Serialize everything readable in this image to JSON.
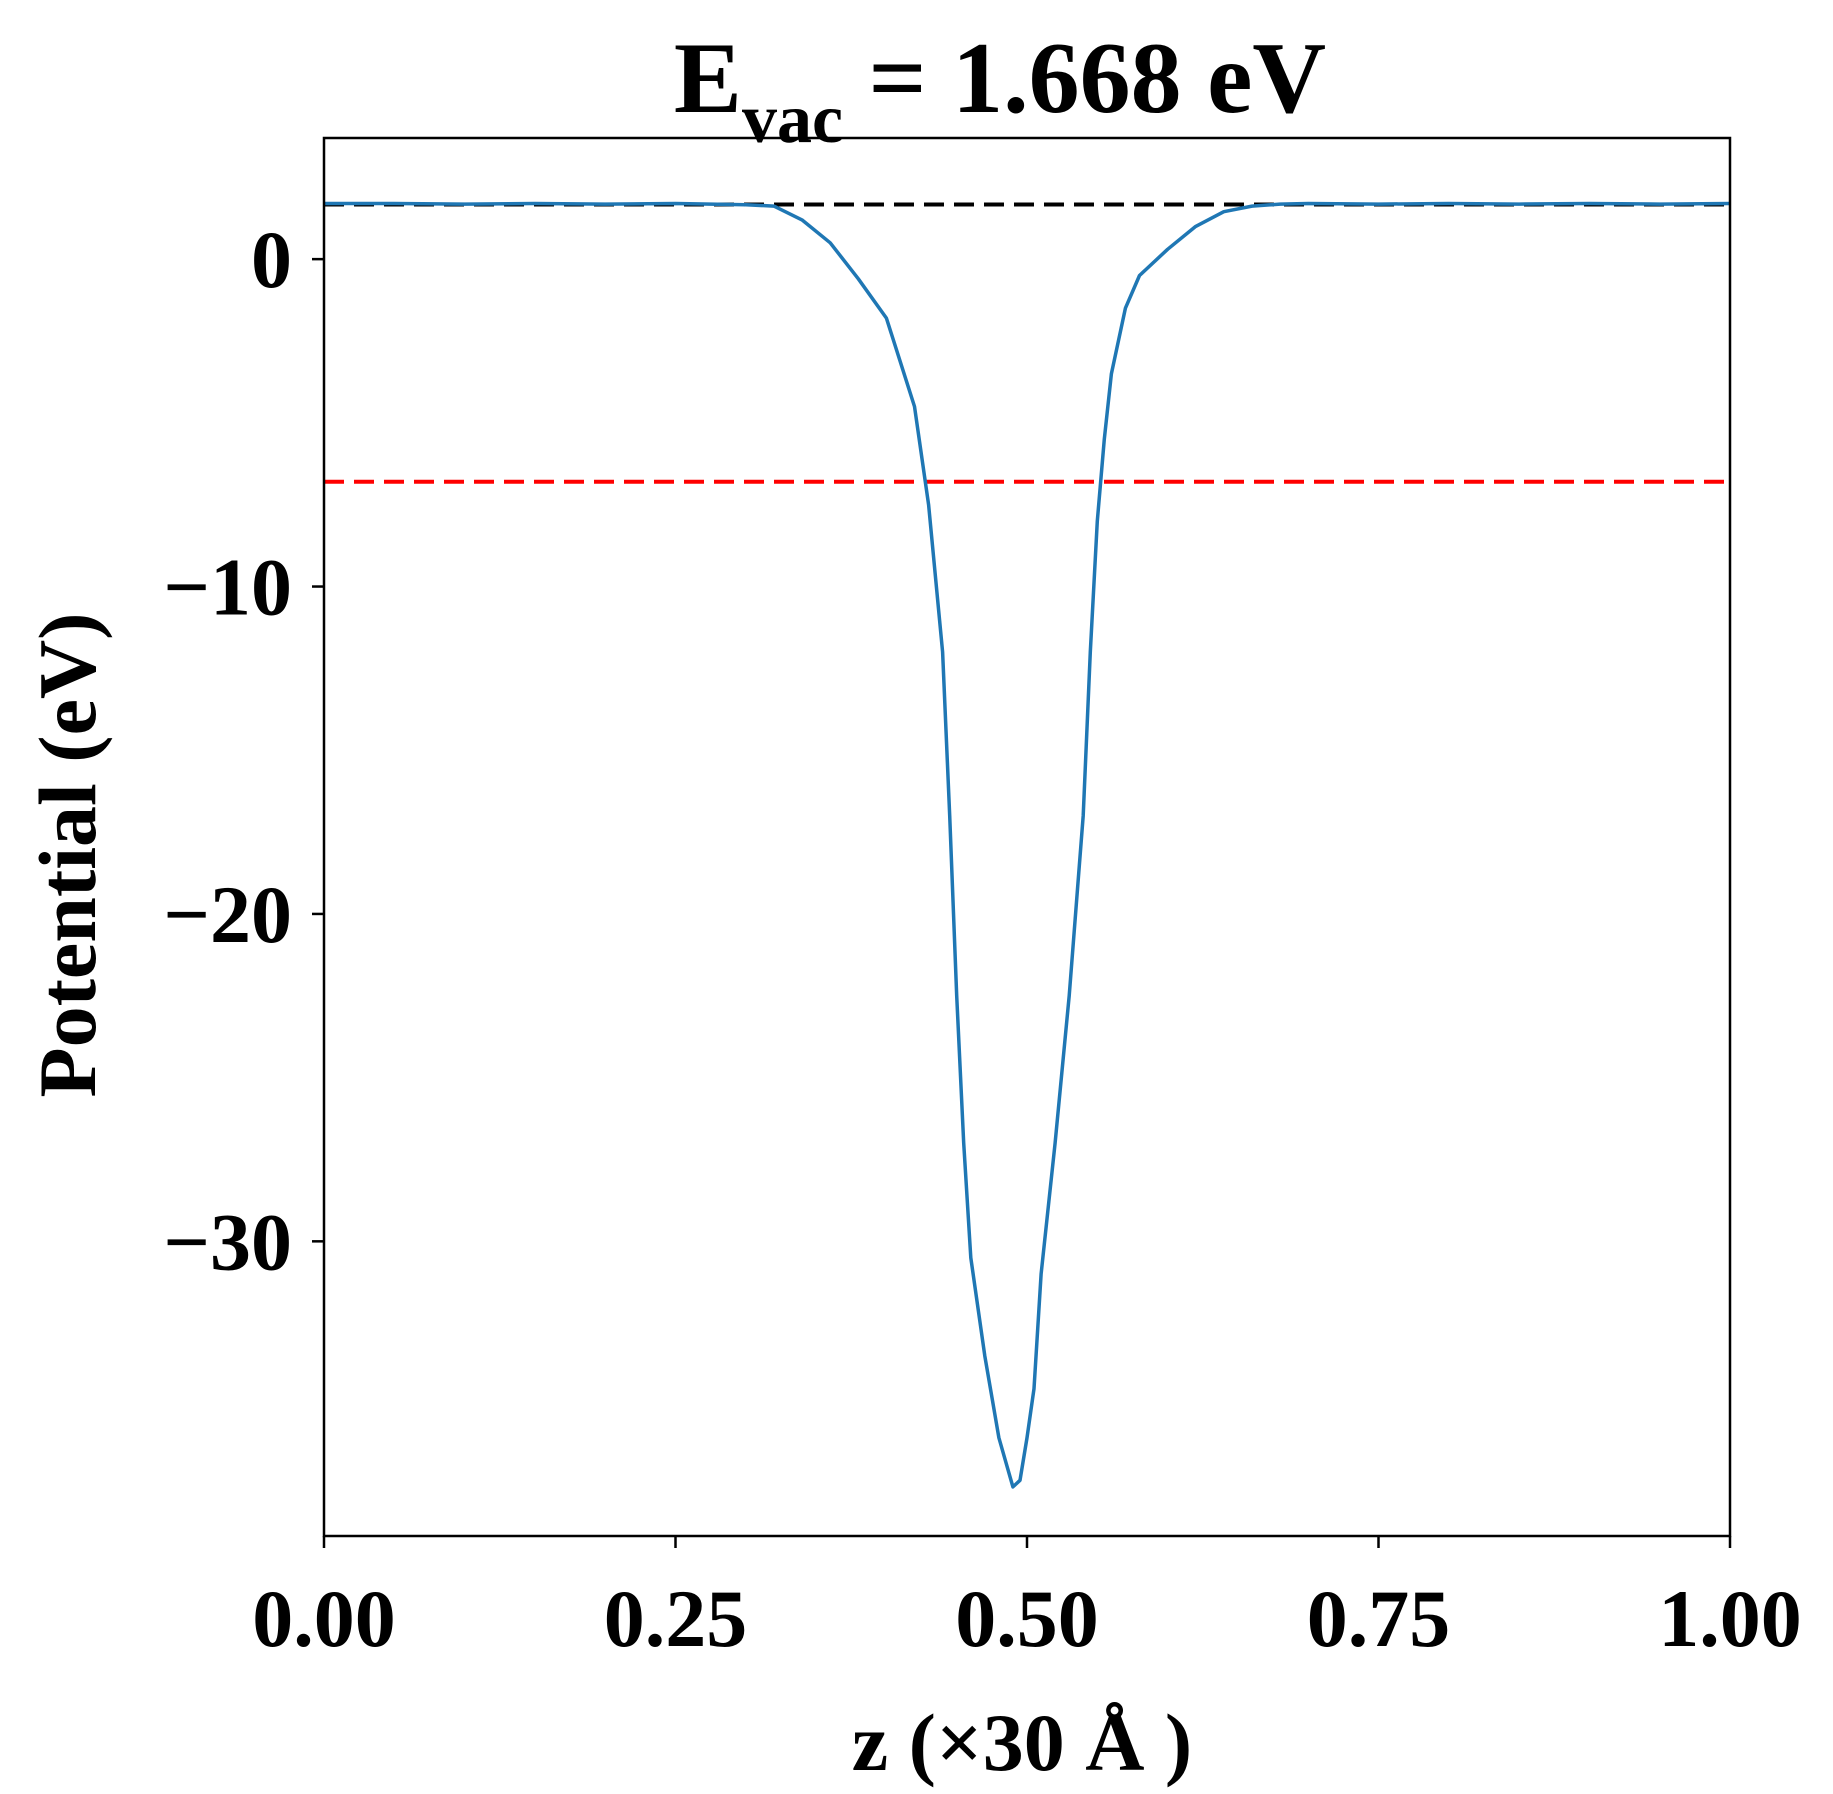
{
  "chart_data": {
    "type": "line",
    "title": {
      "main": "E",
      "sub": "vac",
      "rest": " = 1.668 eV"
    },
    "xlabel": "z (×30 Å )",
    "ylabel": "Potential (eV)",
    "xlim": [
      0.0,
      1.0
    ],
    "ylim": [
      -39.0,
      3.7
    ],
    "xticks": [
      0.0,
      0.25,
      0.5,
      0.75,
      1.0
    ],
    "xtick_labels": [
      "0.00",
      "0.25",
      "0.50",
      "0.75",
      "1.00"
    ],
    "yticks": [
      0,
      -10,
      -20,
      -30
    ],
    "ytick_labels": [
      "0",
      "−10",
      "−20",
      "−30"
    ],
    "grid": false,
    "legend": "none",
    "series": [
      {
        "color": "#1f77b4",
        "x": [
          0.0,
          0.05,
          0.1,
          0.15,
          0.2,
          0.25,
          0.3,
          0.32,
          0.34,
          0.36,
          0.38,
          0.4,
          0.42,
          0.43,
          0.44,
          0.445,
          0.45,
          0.455,
          0.46,
          0.47,
          0.48,
          0.49,
          0.495,
          0.5,
          0.505,
          0.51,
          0.52,
          0.53,
          0.54,
          0.545,
          0.55,
          0.555,
          0.56,
          0.57,
          0.58,
          0.6,
          0.62,
          0.64,
          0.66,
          0.68,
          0.7,
          0.75,
          0.8,
          0.85,
          0.9,
          0.95,
          1.0
        ],
        "y": [
          1.7,
          1.7,
          1.68,
          1.7,
          1.68,
          1.7,
          1.66,
          1.62,
          1.2,
          0.5,
          -0.6,
          -1.8,
          -4.5,
          -7.5,
          -12.0,
          -17.0,
          -22.5,
          -27.0,
          -30.5,
          -33.5,
          -36.0,
          -37.5,
          -37.3,
          -36.0,
          -34.5,
          -31.0,
          -27.0,
          -22.5,
          -17.0,
          -12.0,
          -8.0,
          -5.5,
          -3.5,
          -1.5,
          -0.5,
          0.3,
          1.0,
          1.45,
          1.62,
          1.68,
          1.7,
          1.68,
          1.7,
          1.68,
          1.7,
          1.68,
          1.7
        ]
      }
    ],
    "hlines": [
      {
        "y": 1.668,
        "color": "#000000",
        "style": "dashed"
      },
      {
        "y": -6.8,
        "color": "#ff0000",
        "style": "dashed"
      }
    ]
  }
}
